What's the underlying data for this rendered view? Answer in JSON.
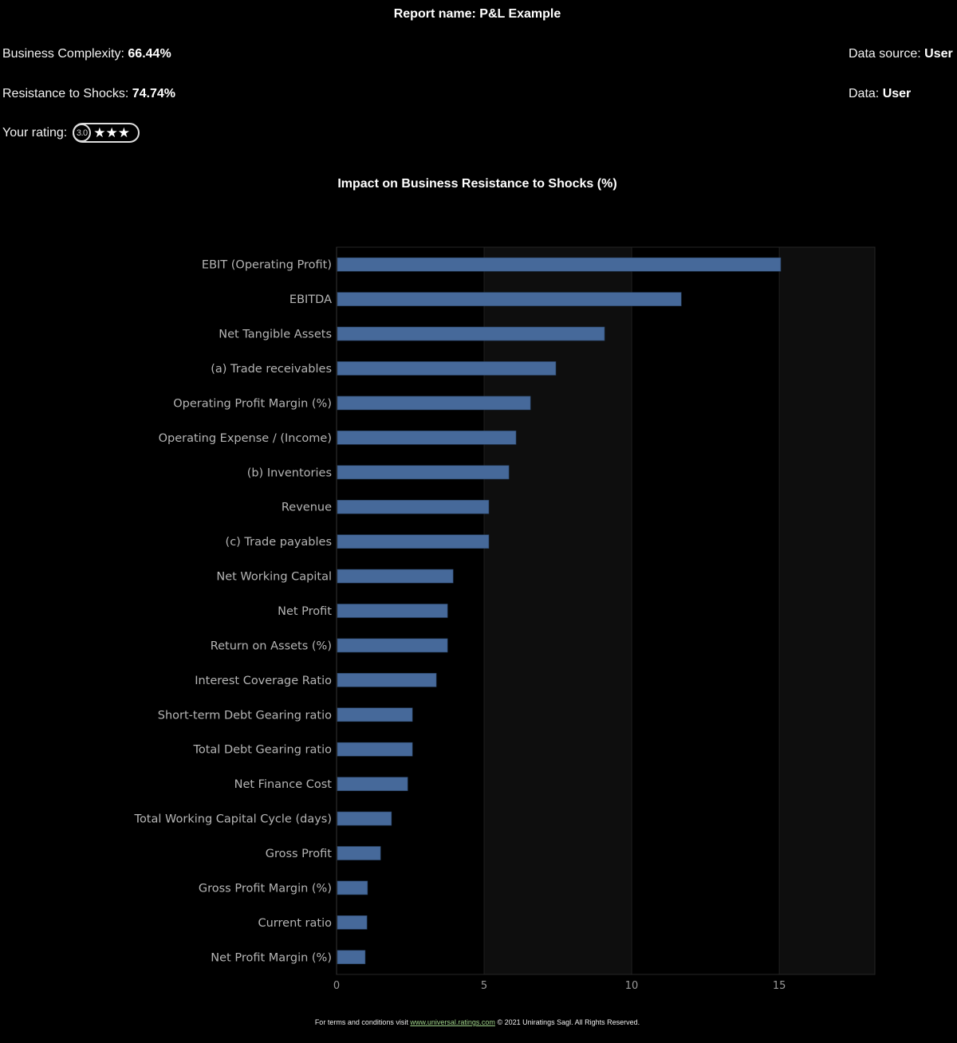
{
  "report": {
    "title_label": "Report name:",
    "title_value": "P&L Example"
  },
  "metrics": {
    "complexity_label": "Business Complexity:",
    "complexity_value": "66.44%",
    "resistance_label": "Resistance to Shocks:",
    "resistance_value": "74.74%",
    "data_source_label": "Data source:",
    "data_source_value": "User",
    "data_label": "Data:",
    "data_value": "User",
    "rating_label": "Your rating:",
    "rating_value": "3.0",
    "rating_stars": "★★★",
    "rating_star_count": 3
  },
  "chart_data": {
    "type": "bar",
    "orientation": "horizontal",
    "title": "Impact on Business Resistance to Shocks (%)",
    "xlabel": "",
    "ylabel": "",
    "xlim": [
      0,
      18.24
    ],
    "xticks": [
      0,
      5,
      10,
      15
    ],
    "grid": true,
    "bar_color": "#46699a",
    "categories": [
      "EBIT (Operating Profit)",
      "EBITDA",
      "Net Tangible Assets",
      "(a) Trade receivables",
      "Operating Profit Margin (%)",
      "Operating Expense / (Income)",
      "(b) Inventories",
      "Revenue",
      "(c) Trade payables",
      "Net Working Capital",
      "Net Profit",
      "Return on Assets (%)",
      "Interest Coverage Ratio",
      "Short-term Debt Gearing ratio",
      "Total Debt Gearing ratio",
      "Net Finance Cost",
      "Total Working Capital Cycle (days)",
      "Gross Profit",
      "Gross Profit Margin (%)",
      "Current ratio",
      "Net Profit Margin (%)"
    ],
    "values": [
      15.05,
      11.68,
      9.08,
      7.43,
      6.57,
      6.08,
      5.84,
      5.16,
      5.16,
      3.95,
      3.76,
      3.76,
      3.38,
      2.57,
      2.57,
      2.41,
      1.86,
      1.49,
      1.05,
      1.03,
      0.97
    ]
  },
  "footer": {
    "prefix": "For terms and conditions visit",
    "link": "www.universal.ratings.com",
    "suffix": "© 2021 Uniratings Sagl. All Rights Reserved."
  }
}
